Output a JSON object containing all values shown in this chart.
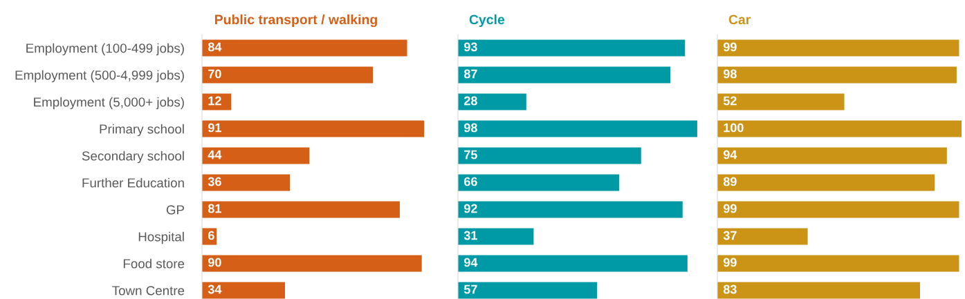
{
  "chart_data": [
    {
      "type": "bar",
      "orientation": "horizontal",
      "title": "Public transport / walking",
      "categories": [
        "Employment (100-499 jobs)",
        "Employment (500-4,999 jobs)",
        "Employment (5,000+ jobs)",
        "Primary school",
        "Secondary school",
        "Further Education",
        "GP",
        "Hospital",
        "Food store",
        "Town Centre"
      ],
      "values": [
        84,
        70,
        12,
        91,
        44,
        36,
        81,
        6,
        90,
        34
      ],
      "color": "#d65f18",
      "tick_labels": "y",
      "data_labels": true
    },
    {
      "type": "bar",
      "orientation": "horizontal",
      "title": "Cycle",
      "categories": [
        null,
        null,
        null,
        null,
        null,
        null,
        null,
        null,
        null,
        null
      ],
      "values": [
        93,
        87,
        28,
        98,
        75,
        66,
        92,
        31,
        94,
        57
      ],
      "color": "#009aa6",
      "tick_labels": false,
      "data_labels": true
    },
    {
      "type": "bar",
      "orientation": "horizontal",
      "title": "Car",
      "categories": [
        null,
        null,
        null,
        null,
        null,
        null,
        null,
        null,
        null,
        null
      ],
      "values": [
        99,
        98,
        52,
        100,
        94,
        89,
        99,
        37,
        99,
        83
      ],
      "color": "#cc9416",
      "tick_labels": false,
      "data_labels": true
    }
  ]
}
